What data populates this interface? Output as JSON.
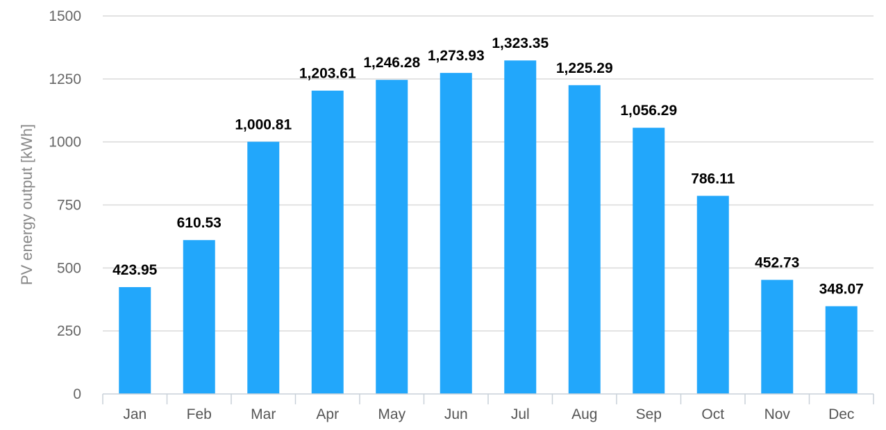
{
  "chart_data": {
    "type": "bar",
    "title": "",
    "xlabel": "",
    "ylabel": "PV energy output [kWh]",
    "ylim": [
      0,
      1500
    ],
    "yticks": [
      0,
      250,
      500,
      750,
      1000,
      1250,
      1500
    ],
    "categories": [
      "Jan",
      "Feb",
      "Mar",
      "Apr",
      "May",
      "Jun",
      "Jul",
      "Aug",
      "Sep",
      "Oct",
      "Nov",
      "Dec"
    ],
    "values": [
      423.95,
      610.53,
      1000.81,
      1203.61,
      1246.28,
      1273.93,
      1323.35,
      1225.29,
      1056.29,
      786.11,
      452.73,
      348.07
    ],
    "data_labels": [
      "423.95",
      "610.53",
      "1,000.81",
      "1,203.61",
      "1,246.28",
      "1,273.93",
      "1,323.35",
      "1,225.29",
      "1,056.29",
      "786.11",
      "452.73",
      "348.07"
    ],
    "bar_color": "#22a7fb",
    "grid": true,
    "legend": "none"
  }
}
